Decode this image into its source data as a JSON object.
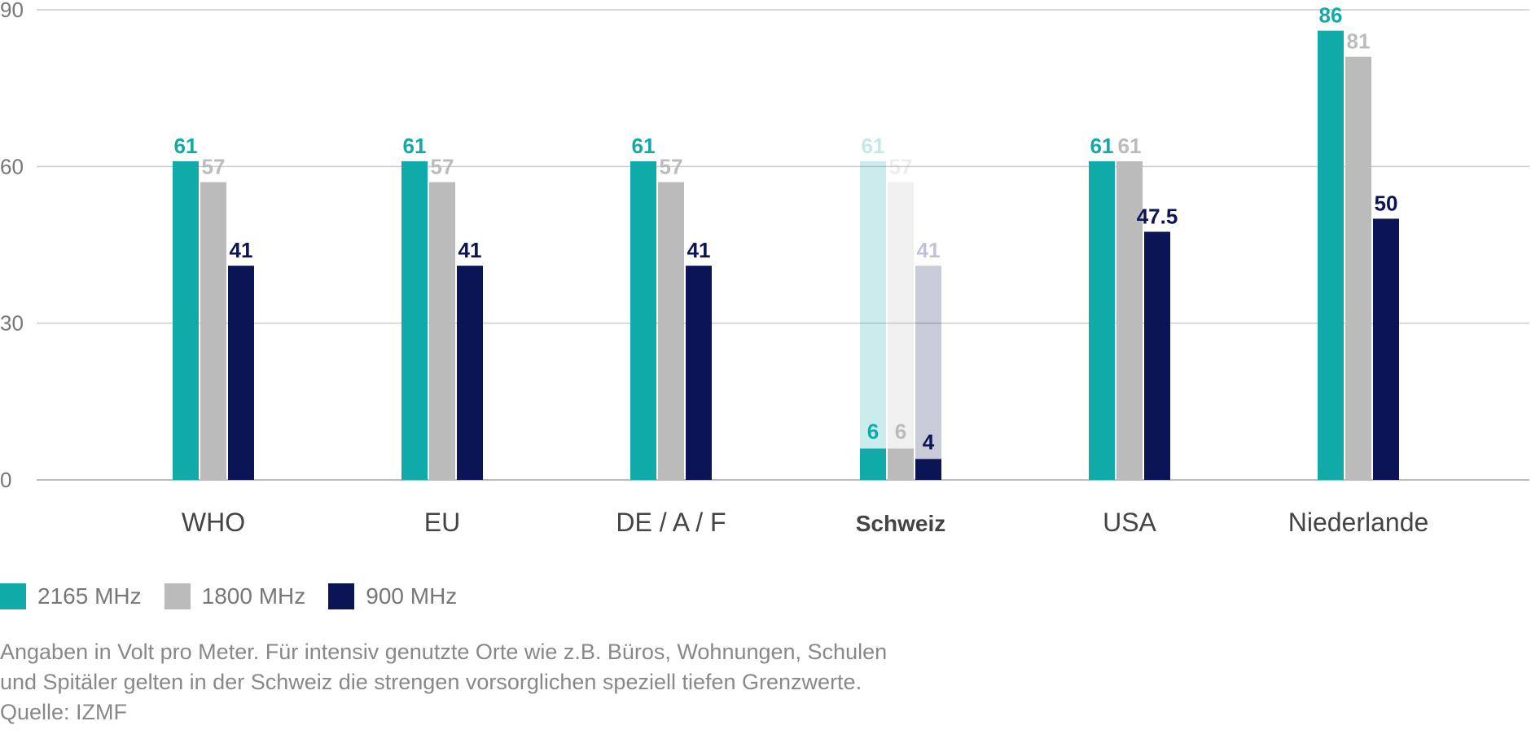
{
  "chart_data": {
    "type": "bar",
    "categories": [
      "WHO",
      "EU",
      "DE / A / F",
      "Schweiz",
      "USA",
      "Niederlande"
    ],
    "highlight_category": "Schweiz",
    "series": [
      {
        "name": "2165 MHz",
        "color": "#10aaa9",
        "values": [
          61,
          61,
          61,
          61,
          61,
          86
        ]
      },
      {
        "name": "1800 MHz",
        "color": "#bbbbbb",
        "values": [
          57,
          57,
          57,
          57,
          61,
          81
        ]
      },
      {
        "name": "900 MHz",
        "color": "#0b1454",
        "values": [
          41,
          41,
          41,
          41,
          47.5,
          50
        ]
      }
    ],
    "overlay": {
      "category": "Schweiz",
      "note": "Schweiz base bars are drawn faded; strict precautionary values drawn solid",
      "values": [
        6,
        6,
        4
      ]
    },
    "yticks": [
      0,
      30,
      60,
      90
    ],
    "ylim": [
      0,
      90
    ],
    "grid": true,
    "legend_position": "bottom-left"
  },
  "legend": [
    {
      "label": "2165 MHz",
      "color": "#10aaa9"
    },
    {
      "label": "1800 MHz",
      "color": "#bbbbbb"
    },
    {
      "label": "900 MHz",
      "color": "#0b1454"
    }
  ],
  "notes": {
    "line1": "Angaben in Volt pro Meter. Für intensiv genutzte Orte wie z.B. Büros, Wohnungen, Schulen",
    "line2": "und Spitäler gelten in der Schweiz die strengen vorsorglichen speziell tiefen Grenzwerte.",
    "source": "Quelle: IZMF"
  }
}
